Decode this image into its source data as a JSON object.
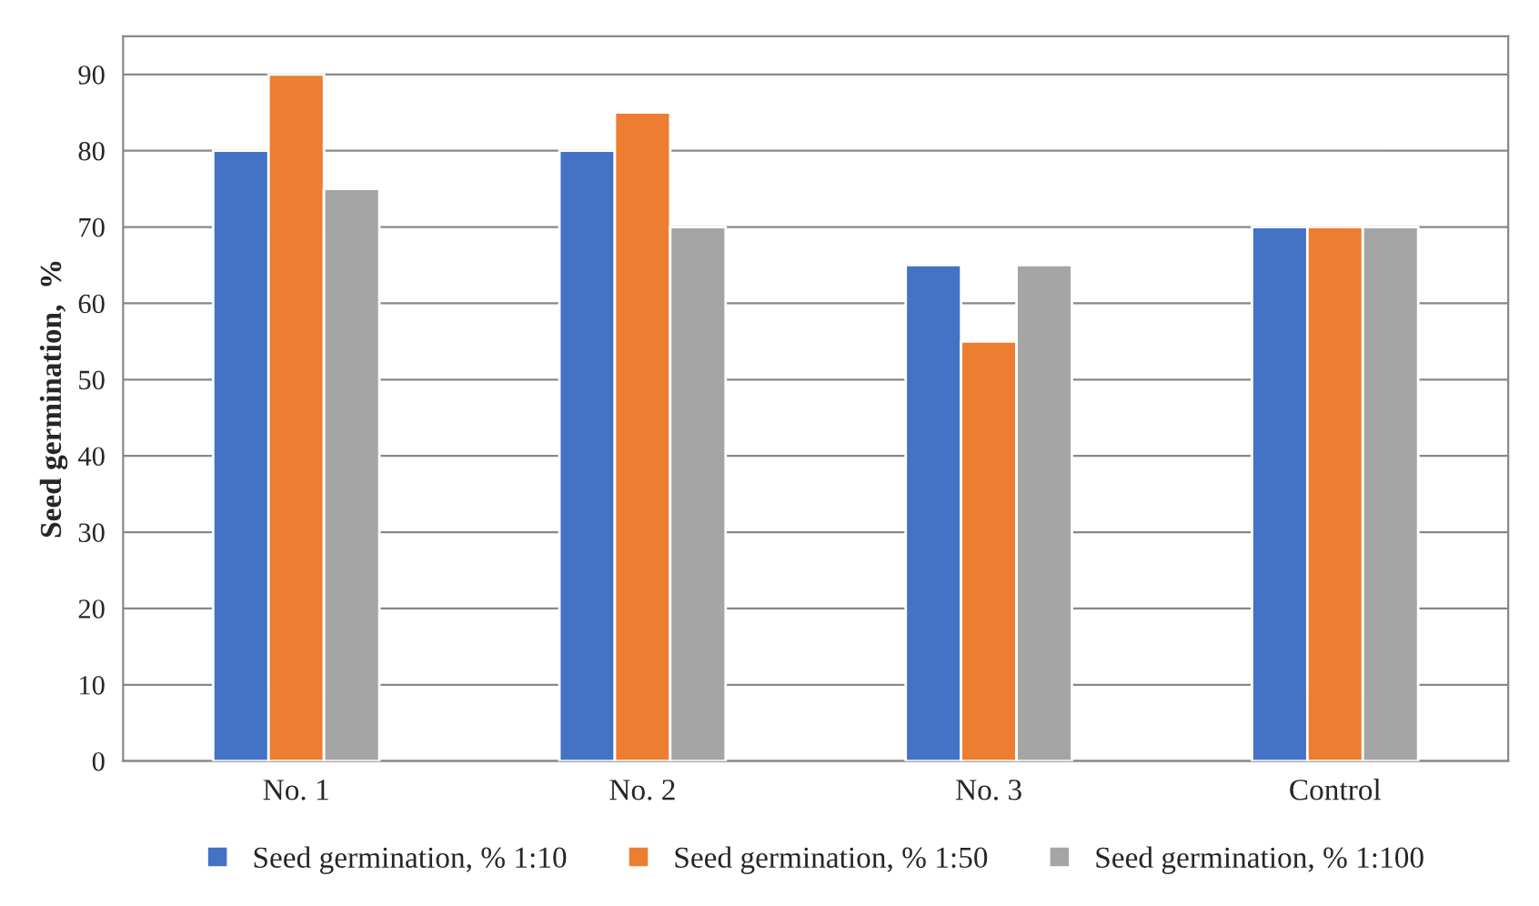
{
  "chart_data": {
    "type": "bar",
    "ylabel": "Seed germination,  %",
    "categories": [
      "No. 1",
      "No. 2",
      "No. 3",
      "Control"
    ],
    "series": [
      {
        "name": "Seed germination, % 1:10",
        "color": "#4472c4",
        "values": [
          80,
          80,
          65,
          70
        ]
      },
      {
        "name": "Seed germination, % 1:50",
        "color": "#ed7d31",
        "values": [
          90,
          85,
          55,
          70
        ]
      },
      {
        "name": "Seed germination, % 1:100",
        "color": "#a5a5a5",
        "values": [
          75,
          70,
          65,
          70
        ]
      }
    ],
    "ylim": [
      0,
      95
    ],
    "yticks": [
      0,
      10,
      20,
      30,
      40,
      50,
      60,
      70,
      80,
      90
    ],
    "grid": "y",
    "legend": "bottom"
  }
}
